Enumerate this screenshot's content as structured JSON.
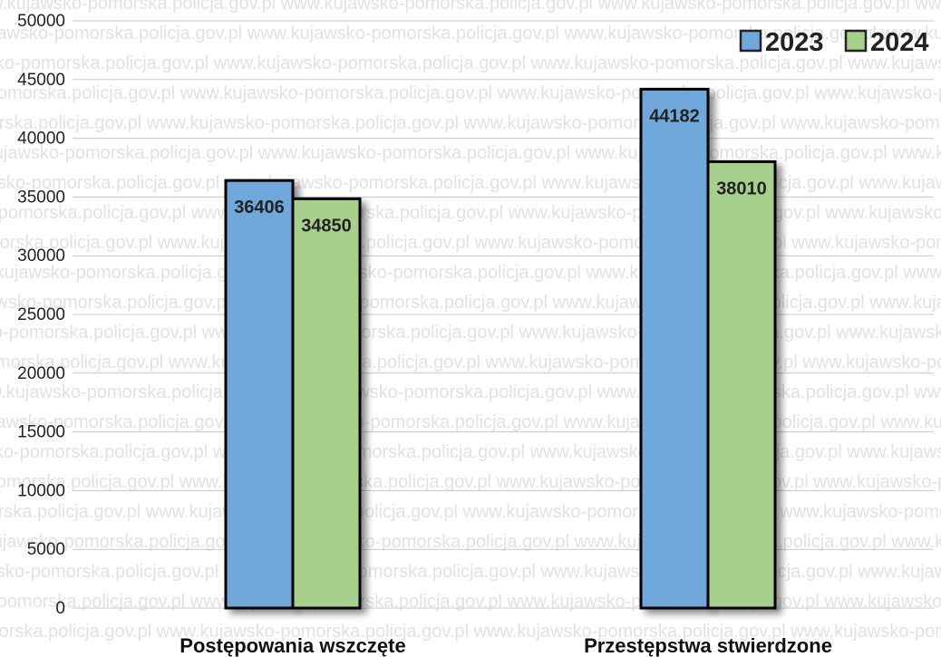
{
  "watermark": "www.kujawsko-pomorska.policja.gov.pl",
  "colors": {
    "series_2023": "#6fa8dc",
    "series_2024": "#a8d08d",
    "outline": "#000000",
    "grid": "#c8c8c8"
  },
  "chart_data": {
    "type": "bar",
    "categories": [
      "Postępowania wszczęte",
      "Przestępstwa stwierdzone"
    ],
    "series": [
      {
        "name": "2023",
        "values": [
          36406,
          44182
        ]
      },
      {
        "name": "2024",
        "values": [
          34850,
          38010
        ]
      }
    ],
    "y_ticks": [
      "0",
      "5000",
      "10000",
      "15000",
      "20000",
      "25000",
      "30000",
      "35000",
      "40000",
      "45000",
      "50000"
    ],
    "ylim": [
      0,
      50000
    ],
    "grid": true,
    "legend_position": "top-right",
    "title": "",
    "xlabel": "",
    "ylabel": ""
  }
}
